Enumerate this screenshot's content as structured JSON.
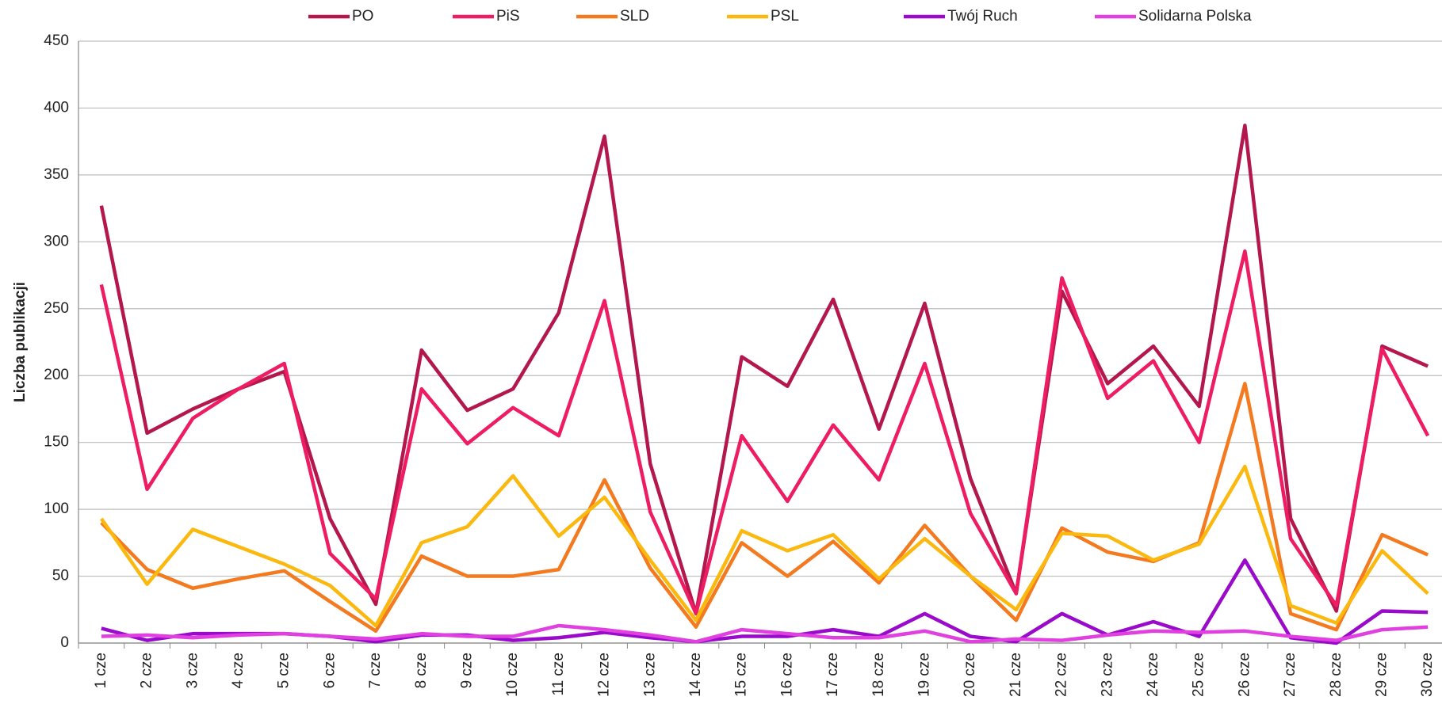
{
  "chart_data": {
    "type": "line",
    "y_label": "Liczba publikacji",
    "categories": [
      "1 cze",
      "2 cze",
      "3 cze",
      "4 cze",
      "5 cze",
      "6 cze",
      "7 cze",
      "8 cze",
      "9 cze",
      "10 cze",
      "11 cze",
      "12 cze",
      "13 cze",
      "14 cze",
      "15 cze",
      "16 cze",
      "17 cze",
      "18 cze",
      "19 cze",
      "20 cze",
      "21 cze",
      "22 cze",
      "23 cze",
      "24 cze",
      "25 cze",
      "26 cze",
      "27 cze",
      "28 cze",
      "29 cze",
      "30 cze"
    ],
    "series": [
      {
        "name": "PO",
        "color": "#b3174e",
        "values": [
          327,
          157,
          175,
          190,
          203,
          93,
          29,
          219,
          174,
          190,
          247,
          379,
          134,
          22,
          214,
          192,
          257,
          160,
          254,
          123,
          37,
          263,
          194,
          222,
          177,
          387,
          93,
          24,
          222,
          207
        ]
      },
      {
        "name": "PiS",
        "color": "#ee1c63",
        "values": [
          268,
          115,
          168,
          190,
          209,
          67,
          33,
          190,
          149,
          176,
          155,
          256,
          98,
          22,
          155,
          106,
          163,
          122,
          209,
          97,
          37,
          273,
          183,
          211,
          150,
          293,
          78,
          28,
          220,
          155
        ]
      },
      {
        "name": "SLD",
        "color": "#f47a20",
        "values": [
          90,
          55,
          41,
          48,
          54,
          31,
          9,
          65,
          50,
          50,
          55,
          122,
          56,
          12,
          75,
          50,
          76,
          45,
          88,
          50,
          17,
          86,
          68,
          61,
          75,
          194,
          22,
          10,
          81,
          66
        ]
      },
      {
        "name": "PSL",
        "color": "#fbb910",
        "values": [
          93,
          44,
          85,
          72,
          59,
          43,
          13,
          75,
          87,
          125,
          80,
          109,
          62,
          17,
          84,
          69,
          81,
          48,
          78,
          50,
          25,
          82,
          80,
          62,
          74,
          132,
          28,
          15,
          69,
          37
        ]
      },
      {
        "name": "Twój Ruch",
        "color": "#9a0acb",
        "values": [
          11,
          2,
          7,
          7,
          7,
          5,
          1,
          6,
          6,
          2,
          4,
          8,
          4,
          1,
          5,
          5,
          10,
          5,
          22,
          5,
          1,
          22,
          6,
          16,
          5,
          62,
          4,
          0,
          24,
          23
        ]
      },
      {
        "name": "Solidarna Polska",
        "color": "#e040e0",
        "values": [
          5,
          6,
          4,
          6,
          7,
          5,
          3,
          7,
          5,
          5,
          13,
          10,
          6,
          1,
          10,
          7,
          4,
          4,
          9,
          1,
          3,
          2,
          6,
          9,
          8,
          9,
          5,
          2,
          10,
          12
        ]
      }
    ],
    "ylim": [
      0,
      450
    ],
    "yticks": [
      0,
      50,
      100,
      150,
      200,
      250,
      300,
      350,
      400,
      450
    ],
    "grid": true,
    "legend": "top"
  }
}
